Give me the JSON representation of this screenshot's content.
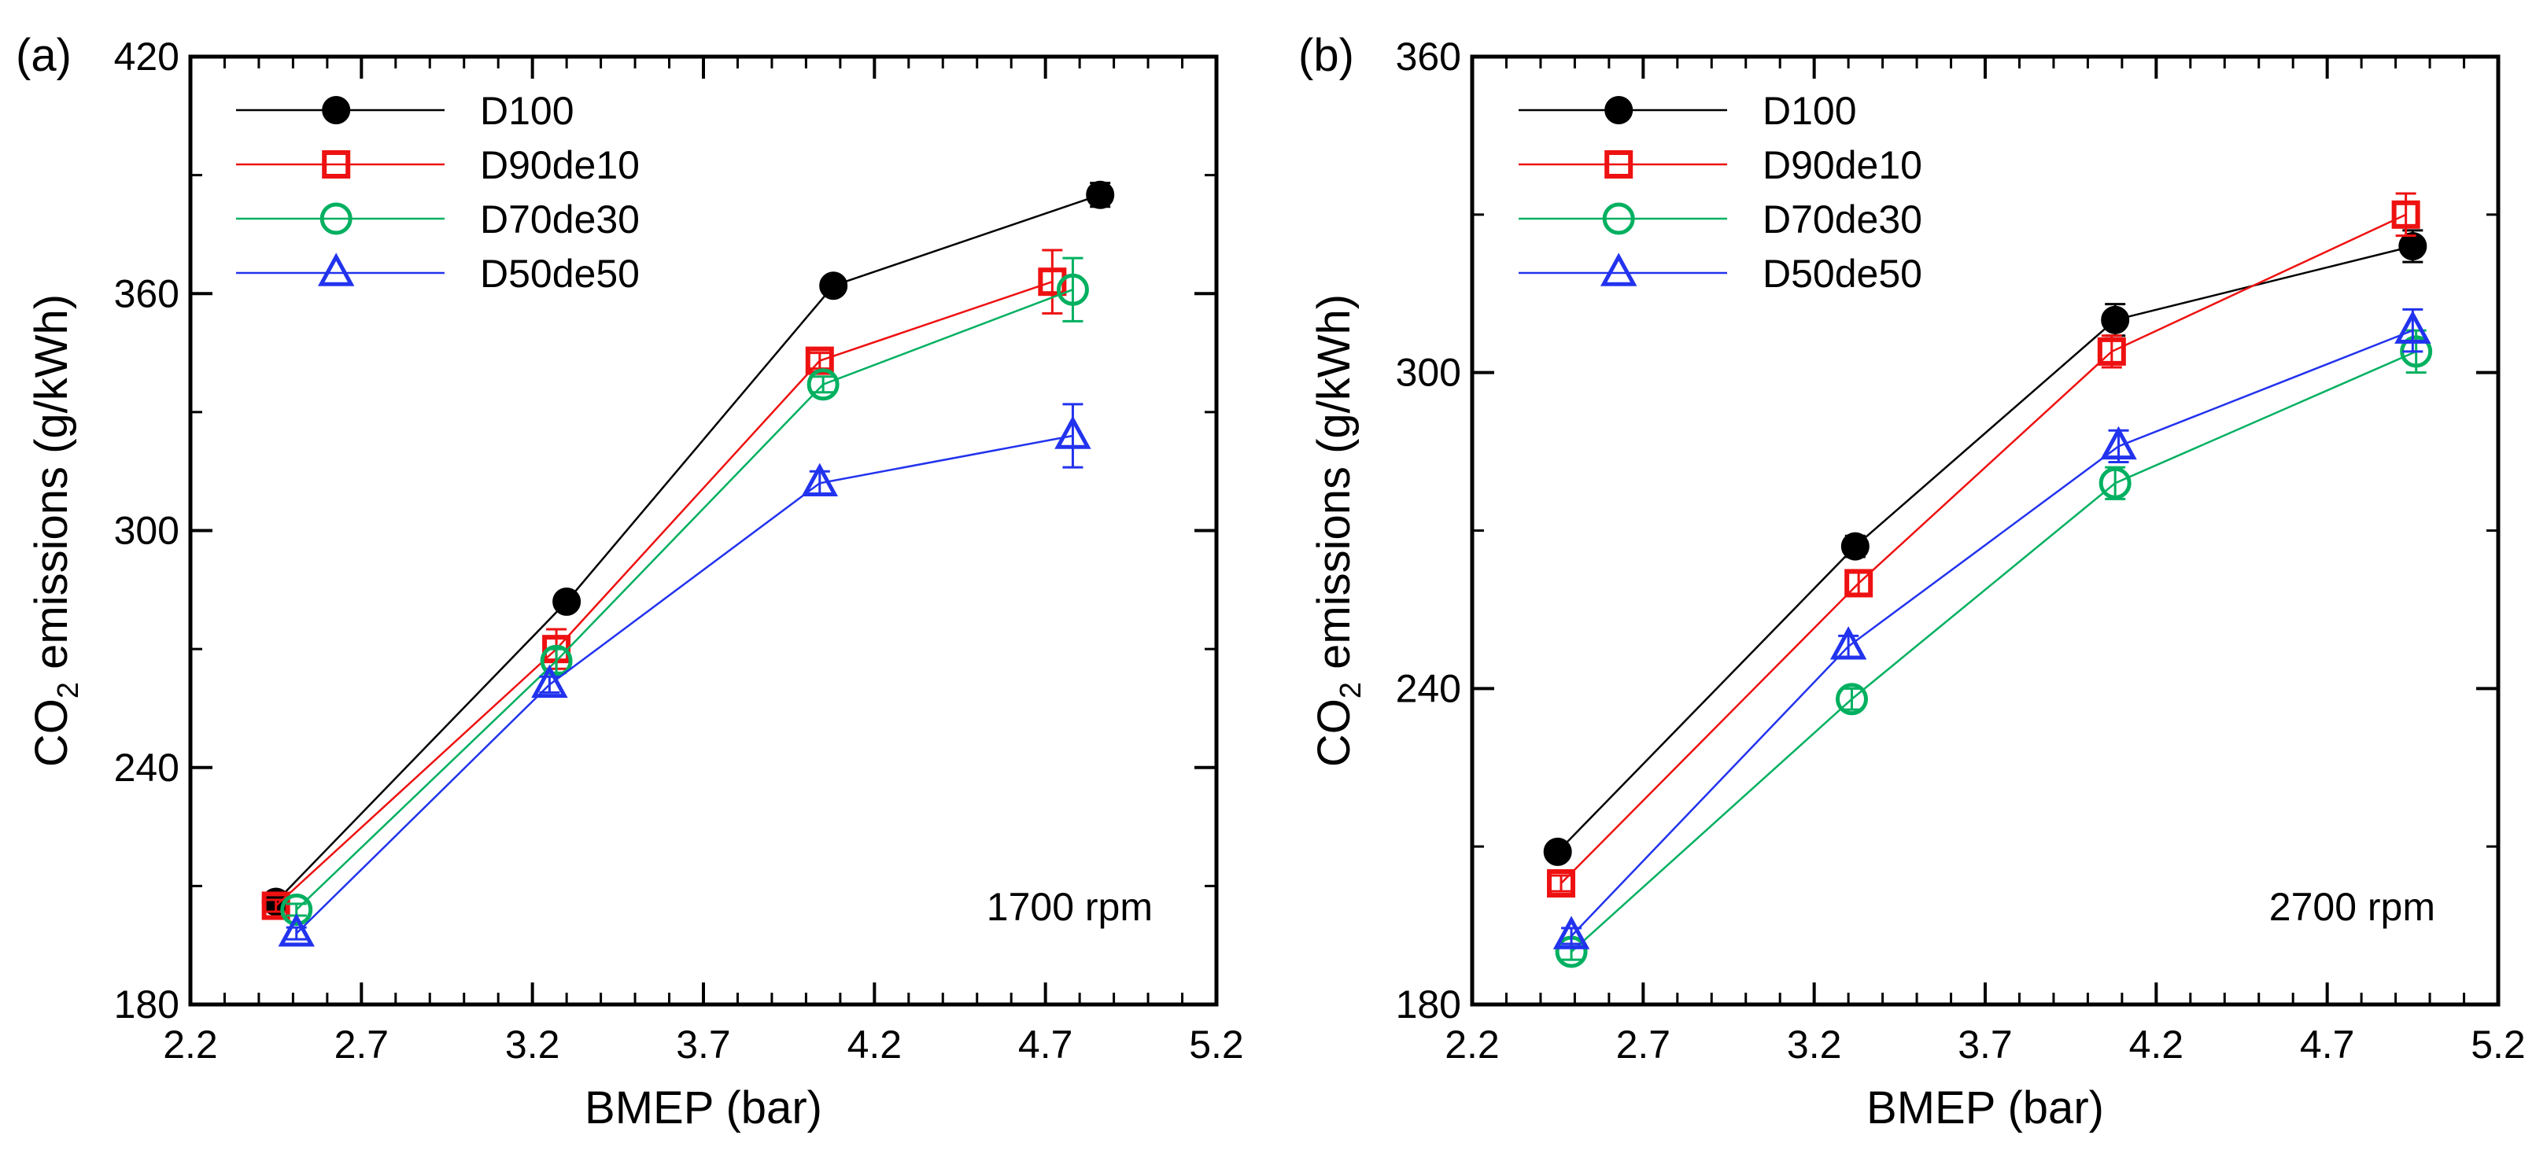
{
  "colors": {
    "D100": "#000000",
    "D90de10": "#ee1111",
    "D70de30": "#00b060",
    "D50de50": "#2233ee"
  },
  "chart_data": [
    {
      "panel": "(a)",
      "type": "line",
      "annotation": "1700 rpm",
      "xlabel": "BMEP (bar)",
      "ylabel_main": "CO",
      "ylabel_sub": "2",
      "ylabel_rest": " emissions (g/kWh)",
      "xlim": [
        2.2,
        5.2
      ],
      "ylim": [
        180,
        420
      ],
      "xticks": [
        2.2,
        2.7,
        3.2,
        3.7,
        4.2,
        4.7,
        5.2
      ],
      "xtick_labels": [
        "2.2",
        "2.7",
        "3.2",
        "3.7",
        "4.2",
        "4.7",
        "5.2"
      ],
      "yticks": [
        180,
        240,
        300,
        360,
        420
      ],
      "ytick_labels": [
        "180",
        "240",
        "300",
        "360",
        "420"
      ],
      "series": [
        {
          "name": "D100",
          "marker": "filled-circle",
          "x": [
            2.45,
            3.3,
            4.08,
            4.86
          ],
          "y": [
            206,
            282,
            362,
            385
          ],
          "err": [
            1.5,
            1.5,
            2,
            3
          ]
        },
        {
          "name": "D90de10",
          "marker": "square",
          "x": [
            2.45,
            3.27,
            4.04,
            4.72
          ],
          "y": [
            205,
            270,
            343,
            363
          ],
          "err": [
            1.5,
            5,
            2,
            8
          ]
        },
        {
          "name": "D70de30",
          "marker": "circle",
          "x": [
            2.51,
            3.27,
            4.05,
            4.78
          ],
          "y": [
            204,
            267,
            337,
            361
          ],
          "err": [
            1.5,
            3,
            2,
            8
          ]
        },
        {
          "name": "D50de50",
          "marker": "triangle",
          "x": [
            2.51,
            3.25,
            4.04,
            4.78
          ],
          "y": [
            198,
            261,
            312,
            324
          ],
          "err": [
            1.5,
            2,
            3,
            8
          ]
        }
      ]
    },
    {
      "panel": "(b)",
      "type": "line",
      "annotation": "2700 rpm",
      "xlabel": "BMEP (bar)",
      "ylabel_main": "CO",
      "ylabel_sub": "2",
      "ylabel_rest": " emissions (g/kWh)",
      "xlim": [
        2.2,
        5.2
      ],
      "ylim": [
        180,
        360
      ],
      "xticks": [
        2.2,
        2.7,
        3.2,
        3.7,
        4.2,
        4.7,
        5.2
      ],
      "xtick_labels": [
        "2.2",
        "2.7",
        "3.2",
        "3.7",
        "4.2",
        "4.7",
        "5.2"
      ],
      "yticks": [
        180,
        240,
        300,
        360
      ],
      "ytick_labels": [
        "180",
        "240",
        "300",
        "360"
      ],
      "series": [
        {
          "name": "D100",
          "marker": "filled-circle",
          "x": [
            2.45,
            3.32,
            4.08,
            4.95
          ],
          "y": [
            209,
            267,
            310,
            324
          ],
          "err": [
            1.5,
            2,
            3,
            3
          ]
        },
        {
          "name": "D90de10",
          "marker": "square",
          "x": [
            2.46,
            3.33,
            4.07,
            4.93
          ],
          "y": [
            203,
            260,
            304,
            330
          ],
          "err": [
            1.5,
            2,
            3,
            4
          ]
        },
        {
          "name": "D70de30",
          "marker": "circle",
          "x": [
            2.49,
            3.31,
            4.08,
            4.96
          ],
          "y": [
            190,
            238,
            279,
            304
          ],
          "err": [
            1.5,
            2,
            3,
            4
          ]
        },
        {
          "name": "D50de50",
          "marker": "triangle",
          "x": [
            2.49,
            3.3,
            4.09,
            4.95
          ],
          "y": [
            193,
            248,
            286,
            308
          ],
          "err": [
            1.5,
            2,
            3,
            4
          ]
        }
      ]
    }
  ]
}
